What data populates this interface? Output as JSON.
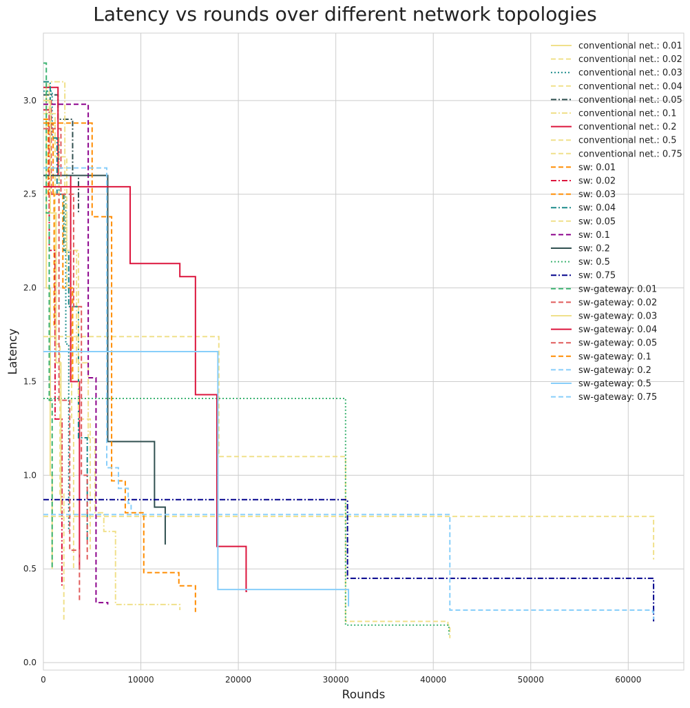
{
  "chart_data": {
    "type": "line",
    "title": "Latency vs rounds over different network topologies",
    "xlabel": "Rounds",
    "ylabel": "Latency",
    "xlim": [
      0,
      65700
    ],
    "ylim": [
      -0.04,
      3.36
    ],
    "xticks": [
      0,
      10000,
      20000,
      30000,
      40000,
      50000,
      60000
    ],
    "xtick_labels": [
      "0",
      "10000",
      "20000",
      "30000",
      "40000",
      "50000",
      "60000"
    ],
    "yticks": [
      0.0,
      0.5,
      1.0,
      1.5,
      2.0,
      2.5,
      3.0
    ],
    "ytick_labels": [
      "0.0",
      "0.5",
      "1.0",
      "1.5",
      "2.0",
      "2.5",
      "3.0"
    ],
    "grid": true,
    "legend_position": "top-right",
    "step": true,
    "series": [
      {
        "name": "conventional net.: 0.01",
        "color": "#f0e08a",
        "dash": "solid",
        "x": [
          0,
          300,
          700,
          900
        ],
        "y": [
          3.1,
          2.0,
          1.0,
          0.5
        ]
      },
      {
        "name": "conventional net.: 0.02",
        "color": "#f0e08a",
        "dash": "dashed",
        "x": [
          0,
          600,
          1200,
          1700,
          2100
        ],
        "y": [
          3.1,
          2.6,
          1.7,
          0.9,
          0.22
        ]
      },
      {
        "name": "conventional net.: 0.03",
        "color": "#1a8a8a",
        "dash": "dotted",
        "x": [
          0,
          900,
          1600,
          2300,
          2600
        ],
        "y": [
          3.05,
          2.8,
          2.5,
          1.7,
          0.7
        ]
      },
      {
        "name": "conventional net.: 0.04",
        "color": "#f0e08a",
        "dash": "dashed",
        "x": [
          0,
          800,
          1600,
          2400,
          2900,
          3100
        ],
        "y": [
          3.0,
          2.8,
          2.4,
          2.0,
          1.3,
          0.5
        ]
      },
      {
        "name": "conventional net.: 0.05",
        "color": "#2f4f4f",
        "dash": "dashdot",
        "x": [
          0,
          1500,
          3000,
          3600
        ],
        "y": [
          3.03,
          2.9,
          2.6,
          2.4
        ]
      },
      {
        "name": "conventional net.: 0.1",
        "color": "#f0e08a",
        "dash": "dashdot",
        "x": [
          0,
          2200,
          3400,
          4600,
          5300,
          6200,
          7400,
          14000
        ],
        "y": [
          3.1,
          2.2,
          1.6,
          1.2,
          0.8,
          0.7,
          0.31,
          0.28
        ]
      },
      {
        "name": "conventional net.: 0.2",
        "color": "#dc143c",
        "dash": "solid",
        "x": [
          0,
          1500,
          2800,
          3700
        ],
        "y": [
          3.07,
          2.6,
          1.5,
          0.5
        ]
      },
      {
        "name": "conventional net.: 0.5",
        "color": "#f0e08a",
        "dash": "dashed",
        "x": [
          0,
          18000,
          31000,
          32000,
          41500,
          41700
        ],
        "y": [
          1.74,
          1.1,
          0.22,
          0.22,
          0.2,
          0.13
        ]
      },
      {
        "name": "conventional net.: 0.75",
        "color": "#f0e08a",
        "dash": "dashed",
        "x": [
          0,
          62500,
          62600
        ],
        "y": [
          0.78,
          0.78,
          0.55
        ]
      },
      {
        "name": "sw: 0.01",
        "color": "#ff8c00",
        "dash": "dashed",
        "x": [
          0,
          500,
          1100
        ],
        "y": [
          2.9,
          2.5,
          1.8
        ]
      },
      {
        "name": "sw: 0.02",
        "color": "#dc143c",
        "dash": "dashdot",
        "x": [
          0,
          600,
          1200,
          1900
        ],
        "y": [
          2.95,
          2.2,
          1.3,
          0.4
        ]
      },
      {
        "name": "sw: 0.03",
        "color": "#ff8c00",
        "dash": "dashed",
        "x": [
          0,
          1000,
          2000,
          3000
        ],
        "y": [
          2.88,
          2.5,
          2.0,
          1.5
        ]
      },
      {
        "name": "sw: 0.04",
        "color": "#1a8a8a",
        "dash": "dashdot",
        "x": [
          0,
          700,
          1400,
          2100,
          2600,
          3600,
          4500
        ],
        "y": [
          3.1,
          2.8,
          2.5,
          2.2,
          1.9,
          1.2,
          0.65
        ]
      },
      {
        "name": "sw: 0.05",
        "color": "#f0e08a",
        "dash": "dashed",
        "x": [
          0,
          1200,
          2400,
          3600,
          4800
        ],
        "y": [
          2.93,
          2.7,
          2.2,
          1.3,
          0.6
        ]
      },
      {
        "name": "sw: 0.1",
        "color": "#8b008b",
        "dash": "dashed",
        "x": [
          0,
          4600,
          5400,
          5700,
          6600
        ],
        "y": [
          2.98,
          1.52,
          0.32,
          0.32,
          0.31
        ]
      },
      {
        "name": "sw: 0.2",
        "color": "#2f4f4f",
        "dash": "solid",
        "x": [
          0,
          6600,
          11400,
          12500
        ],
        "y": [
          2.6,
          1.18,
          0.83,
          0.63
        ]
      },
      {
        "name": "sw: 0.5",
        "color": "#3cb371",
        "dash": "dotted",
        "x": [
          0,
          31000,
          41500,
          41600
        ],
        "y": [
          1.41,
          0.2,
          0.2,
          0.15
        ]
      },
      {
        "name": "sw: 0.75",
        "color": "#00008b",
        "dash": "dashdot",
        "x": [
          0,
          31200,
          62500,
          62600
        ],
        "y": [
          0.87,
          0.45,
          0.45,
          0.22
        ]
      },
      {
        "name": "sw-gateway: 0.01",
        "color": "#3cb371",
        "dash": "dashed",
        "x": [
          0,
          300,
          600,
          900
        ],
        "y": [
          3.2,
          2.4,
          1.4,
          0.5
        ]
      },
      {
        "name": "sw-gateway: 0.02",
        "color": "#e05a5a",
        "dash": "dashed",
        "x": [
          0,
          800,
          1600,
          2700,
          3700
        ],
        "y": [
          3.0,
          2.5,
          1.4,
          0.6,
          0.32
        ]
      },
      {
        "name": "sw-gateway: 0.03",
        "color": "#f0e08a",
        "dash": "solid",
        "x": [
          0,
          700,
          1300,
          1800
        ],
        "y": [
          3.0,
          2.4,
          1.6,
          0.8
        ]
      },
      {
        "name": "sw-gateway: 0.04",
        "color": "#dc143c",
        "dash": "solid",
        "x": [
          0,
          8900,
          14000,
          15600,
          17800,
          20800,
          20900
        ],
        "y": [
          2.54,
          2.13,
          2.06,
          1.43,
          0.62,
          0.38,
          0.38
        ]
      },
      {
        "name": "sw-gateway: 0.05",
        "color": "#e05a5a",
        "dash": "dashed",
        "x": [
          0,
          1800,
          3100,
          3900,
          4500
        ],
        "y": [
          2.85,
          2.5,
          1.9,
          1.0,
          0.55
        ]
      },
      {
        "name": "sw-gateway: 0.1",
        "color": "#ff8c00",
        "dash": "dashed",
        "x": [
          0,
          5000,
          7000,
          8400,
          10300,
          13900,
          15600
        ],
        "y": [
          2.88,
          2.38,
          0.97,
          0.8,
          0.48,
          0.41,
          0.27
        ]
      },
      {
        "name": "sw-gateway: 0.2",
        "color": "#87cefa",
        "dash": "dashed",
        "x": [
          0,
          6500,
          7700,
          8700,
          9000
        ],
        "y": [
          2.64,
          1.04,
          0.93,
          0.85,
          0.8
        ]
      },
      {
        "name": "sw-gateway: 0.5",
        "color": "#87cefa",
        "dash": "solid",
        "x": [
          0,
          17900,
          31200,
          31300
        ],
        "y": [
          1.66,
          0.39,
          0.39,
          0.3
        ]
      },
      {
        "name": "sw-gateway: 0.75",
        "color": "#87cefa",
        "dash": "dashed",
        "x": [
          0,
          41700,
          62500,
          62600
        ],
        "y": [
          0.79,
          0.28,
          0.27,
          0.23
        ]
      }
    ]
  }
}
